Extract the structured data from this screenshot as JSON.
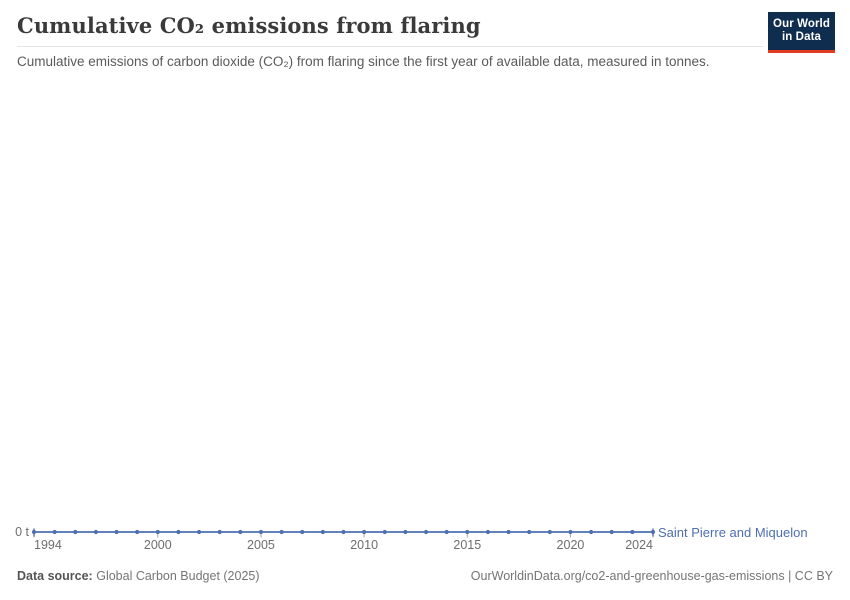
{
  "header": {
    "title": "Cumulative CO₂ emissions from flaring",
    "subtitle": "Cumulative emissions of carbon dioxide (CO₂) from flaring since the first year of available data, measured in tonnes."
  },
  "logo": {
    "line1": "Our World",
    "line2": "in Data",
    "bg_color": "#0f2d4e",
    "accent_color": "#e23b22"
  },
  "chart_data": {
    "type": "line",
    "title": "Cumulative CO₂ emissions from flaring",
    "unit": "t",
    "x": [
      1994,
      1995,
      1996,
      1997,
      1998,
      1999,
      2000,
      2001,
      2002,
      2003,
      2004,
      2005,
      2006,
      2007,
      2008,
      2009,
      2010,
      2011,
      2012,
      2013,
      2014,
      2015,
      2016,
      2017,
      2018,
      2019,
      2020,
      2021,
      2022,
      2023,
      2024
    ],
    "series": [
      {
        "name": "Saint Pierre and Miquelon",
        "color": "#4e70b0",
        "values": [
          0,
          0,
          0,
          0,
          0,
          0,
          0,
          0,
          0,
          0,
          0,
          0,
          0,
          0,
          0,
          0,
          0,
          0,
          0,
          0,
          0,
          0,
          0,
          0,
          0,
          0,
          0,
          0,
          0,
          0,
          0
        ]
      }
    ],
    "x_ticks": [
      1994,
      2000,
      2005,
      2010,
      2015,
      2020,
      2024
    ],
    "y_tick_label": "0 t",
    "ylim": [
      0,
      0
    ],
    "grid": false,
    "markers": true,
    "legend_position": "right-of-line-end"
  },
  "footer": {
    "data_source_label": "Data source:",
    "data_source_value": "Global Carbon Budget (2025)",
    "attribution": "OurWorldinData.org/co2-and-greenhouse-gas-emissions | CC BY"
  },
  "colors": {
    "line": "#4e70b0",
    "axis_text": "#6e6e6e",
    "tick": "#a8a8a8",
    "title_text": "#3a3a3a",
    "subtitle_text": "#5a5a5a"
  }
}
